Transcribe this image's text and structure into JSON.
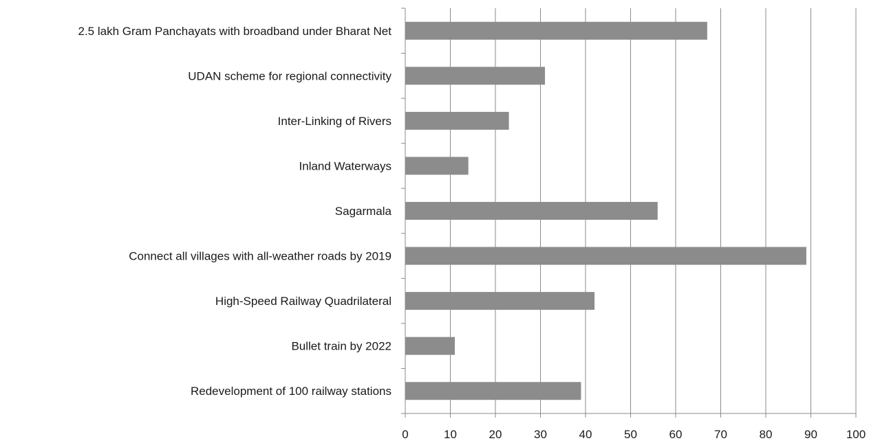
{
  "chart_data": {
    "type": "bar",
    "orientation": "horizontal",
    "title": "",
    "xlabel": "",
    "ylabel": "",
    "xlim": [
      0,
      100
    ],
    "grid": true,
    "legend": "none",
    "bar_color": "#8c8c8c",
    "ticks": [
      "0",
      "10",
      "20",
      "30",
      "40",
      "50",
      "60",
      "70",
      "80",
      "90",
      "100"
    ],
    "categories": [
      "2.5 lakh Gram Panchayats with broadband under Bharat Net",
      "UDAN scheme for regional connectivity",
      "Inter-Linking of Rivers",
      "Inland Waterways",
      "Sagarmala",
      "Connect all villages with all-weather roads by 2019",
      "High-Speed Railway Quadrilateral",
      "Bullet train by 2022",
      "Redevelopment of 100 railway stations"
    ],
    "values": [
      67,
      31,
      23,
      14,
      56,
      89,
      42,
      11,
      39
    ]
  }
}
